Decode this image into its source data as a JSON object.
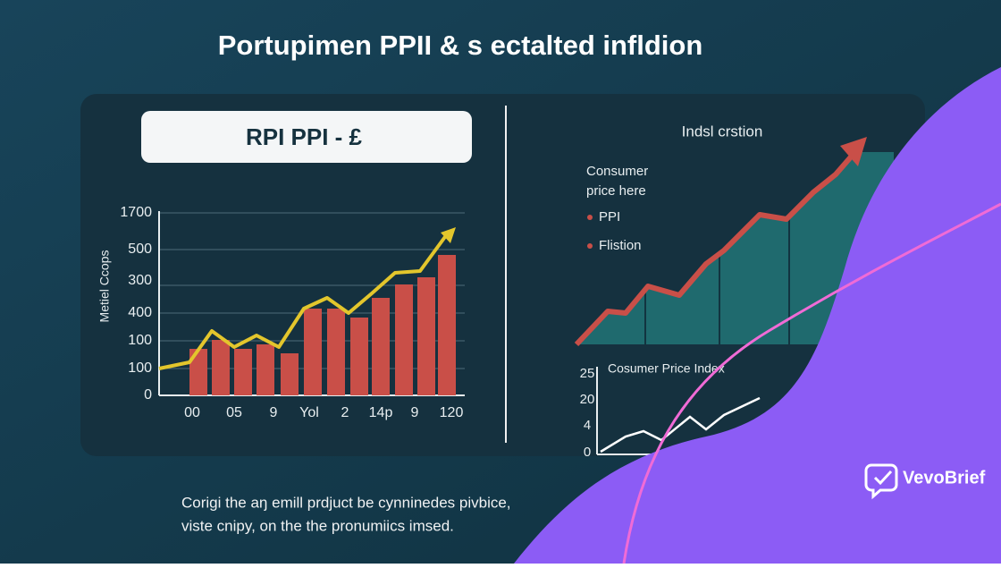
{
  "header": {
    "title": "Portupimen PPII & s ectalted infldion"
  },
  "left_panel": {
    "label_box": "RPI PPI  - £",
    "y_axis_label": "Metiel Ccops",
    "y_tick_labels": [
      "1700",
      "500",
      "300",
      "400",
      "100",
      "100",
      "0"
    ],
    "x_tick_labels": [
      "00",
      "05",
      "9",
      "Yol",
      "2",
      "14p",
      "9",
      "120"
    ]
  },
  "right_panel": {
    "title": "Indsl crstion",
    "subtitle_lines": [
      "Consumer",
      "price here"
    ],
    "legend": [
      "PPI",
      "Flistion"
    ],
    "small_chart": {
      "title": "Cosumer Price Index",
      "y_tick_labels": [
        "25",
        "20",
        "4",
        "0"
      ]
    }
  },
  "caption": {
    "lines": [
      "Corigi the aŋ emill prdjuct be cynninedes pivbice,",
      "viste cnipy, on the the pronumiics imsed."
    ]
  },
  "logo": {
    "text": "VevoBrief"
  }
}
